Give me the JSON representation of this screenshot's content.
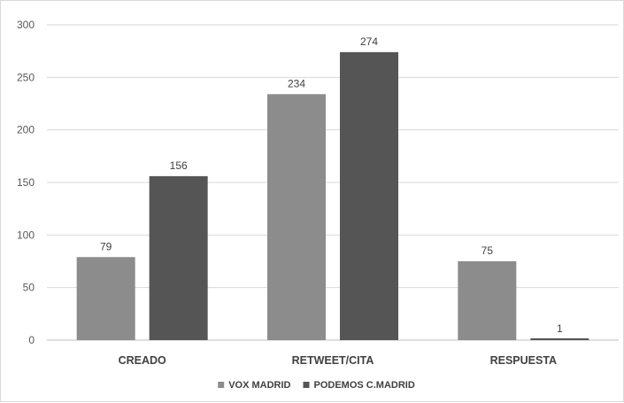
{
  "chart_data": {
    "type": "bar",
    "title": "",
    "xlabel": "",
    "ylabel": "",
    "categories": [
      "CREADO",
      "RETWEET/CITA",
      "RESPUESTA"
    ],
    "series": [
      {
        "name": "VOX MADRID",
        "values": [
          79,
          234,
          75
        ],
        "color": "#8c8c8c"
      },
      {
        "name": "PODEMOS C.MADRID",
        "values": [
          156,
          274,
          1
        ],
        "color": "#555555"
      }
    ],
    "ylim": [
      0,
      300
    ],
    "yticks": [
      0,
      50,
      100,
      150,
      200,
      250,
      300
    ],
    "grid": true,
    "legend": "bottom-center",
    "data_labels": true
  }
}
